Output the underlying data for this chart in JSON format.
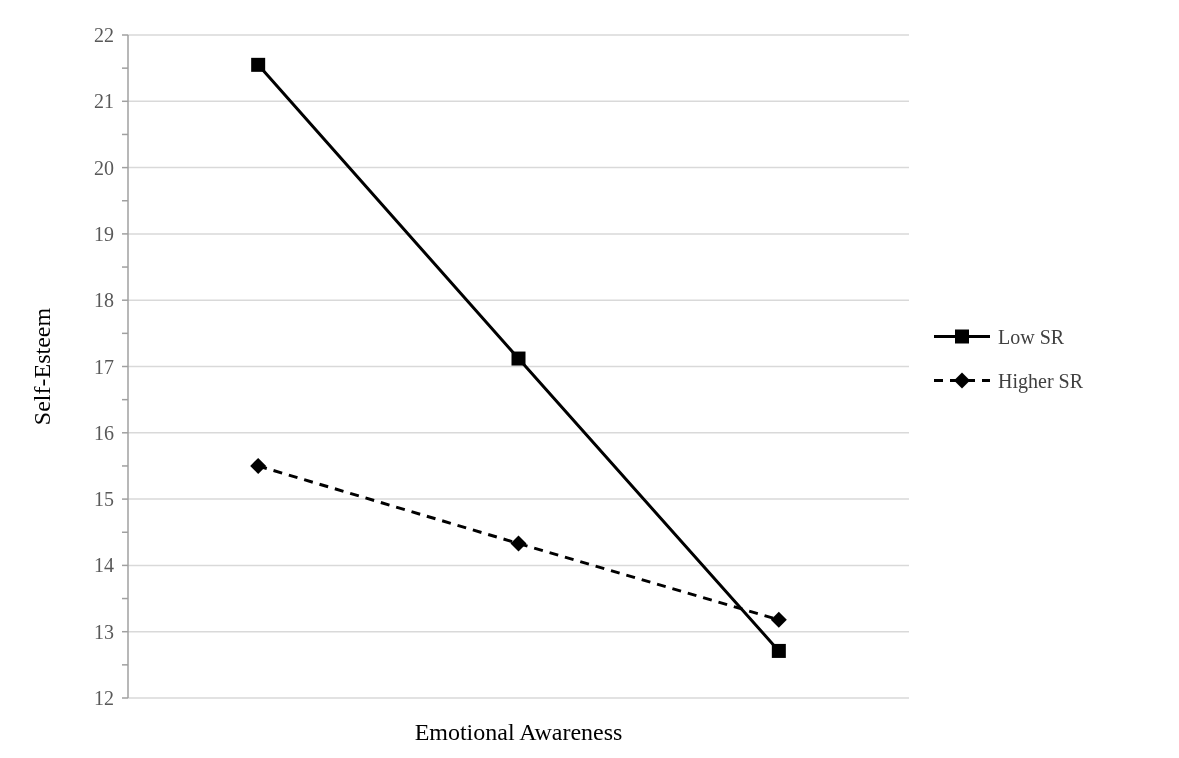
{
  "chart_data": {
    "type": "line",
    "xlabel": "Emotional Awareness",
    "ylabel": "Self-Esteem",
    "categories": [
      null,
      null,
      null
    ],
    "series": [
      {
        "name": "Low SR",
        "color": "#000000",
        "values": [
          21.55,
          17.12,
          12.71
        ],
        "marker": "square",
        "line_style": "solid"
      },
      {
        "name": "Higher SR",
        "color": "#000000",
        "values": [
          15.5,
          14.33,
          13.18
        ],
        "marker": "diamond",
        "line_style": "dashed"
      }
    ],
    "ylim": [
      12,
      22
    ],
    "yticks": [
      12,
      {
        "value": 12.5,
        "label": null
      },
      13,
      {
        "value": 13.5,
        "label": null
      },
      14,
      {
        "value": 14.5,
        "label": null
      },
      15,
      {
        "value": 15.5,
        "label": null
      },
      16,
      {
        "value": 16.5,
        "label": null
      },
      17,
      {
        "value": 17.5,
        "label": null
      },
      18,
      {
        "value": 18.5,
        "label": null
      },
      19,
      {
        "value": 19.5,
        "label": null
      },
      20,
      {
        "value": 20.5,
        "label": null
      },
      21,
      {
        "value": 21.5,
        "label": null
      },
      22
    ],
    "grid": "y",
    "legend": "right"
  }
}
